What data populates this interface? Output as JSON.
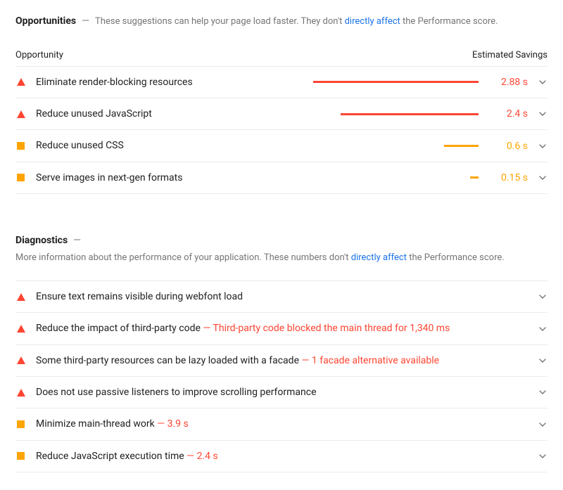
{
  "colors": {
    "fail": "#ff4532",
    "average": "#ffa400",
    "sub": "#757575",
    "link": "#1a73e8",
    "border": "#ebebeb",
    "chevron": "#757575"
  },
  "opportunities": {
    "title": "Opportunities",
    "subtext_pre": "These suggestions can help your page load faster. They don't",
    "subtext_link": "directly affect",
    "subtext_post": "the Performance score.",
    "col_opportunity": "Opportunity",
    "col_savings": "Estimated Savings",
    "max_seconds": 3.0,
    "items": [
      {
        "severity": "fail",
        "label": "Eliminate render-blocking resources",
        "seconds": 2.88,
        "savings": "2.88 s"
      },
      {
        "severity": "fail",
        "label": "Reduce unused JavaScript",
        "seconds": 2.4,
        "savings": "2.4 s"
      },
      {
        "severity": "average",
        "label": "Reduce unused CSS",
        "seconds": 0.6,
        "savings": "0.6 s"
      },
      {
        "severity": "average",
        "label": "Serve images in next-gen formats",
        "seconds": 0.15,
        "savings": "0.15 s"
      }
    ]
  },
  "diagnostics": {
    "title": "Diagnostics",
    "subtext_pre": "More information about the performance of your application. These numbers don't",
    "subtext_link": "directly affect",
    "subtext_post": "the Performance score.",
    "items": [
      {
        "severity": "fail",
        "label": "Ensure text remains visible during webfont load",
        "detail": ""
      },
      {
        "severity": "fail",
        "label": "Reduce the impact of third-party code",
        "detail": "Third-party code blocked the main thread for 1,340 ms"
      },
      {
        "severity": "fail",
        "label": "Some third-party resources can be lazy loaded with a facade",
        "detail": "1 facade alternative available"
      },
      {
        "severity": "fail",
        "label": "Does not use passive listeners to improve scrolling performance",
        "detail": ""
      },
      {
        "severity": "average",
        "label": "Minimize main-thread work",
        "detail": "3.9 s"
      },
      {
        "severity": "average",
        "label": "Reduce JavaScript execution time",
        "detail": "2.4 s"
      }
    ]
  }
}
